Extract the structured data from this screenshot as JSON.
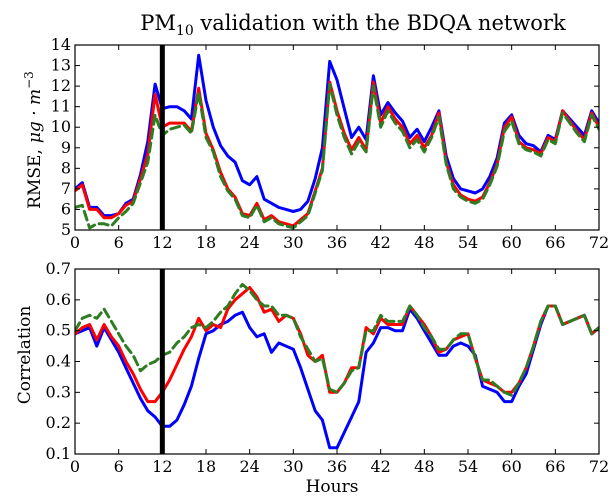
{
  "chart_data": [
    {
      "type": "line",
      "title_main": "PM",
      "title_sub": "10",
      "title_rest": " validation with the BDQA network",
      "xlabel": "",
      "ylabel_text": "RMSE,",
      "ylabel_unit": "μg · m",
      "ylabel_exp": "−3",
      "xlim": [
        0,
        72
      ],
      "ylim": [
        5,
        14
      ],
      "xticks": [
        0,
        6,
        12,
        18,
        24,
        30,
        36,
        42,
        48,
        54,
        60,
        66,
        72
      ],
      "yticks": [
        5,
        6,
        7,
        8,
        9,
        10,
        11,
        12,
        13,
        14
      ],
      "x": [
        0,
        1,
        2,
        3,
        4,
        5,
        6,
        7,
        8,
        9,
        10,
        11,
        12,
        13,
        14,
        15,
        16,
        17,
        18,
        19,
        20,
        21,
        22,
        23,
        24,
        25,
        26,
        27,
        28,
        29,
        30,
        31,
        32,
        33,
        34,
        35,
        36,
        37,
        38,
        39,
        40,
        41,
        42,
        43,
        44,
        45,
        46,
        47,
        48,
        49,
        50,
        51,
        52,
        53,
        54,
        55,
        56,
        57,
        58,
        59,
        60,
        61,
        62,
        63,
        64,
        65,
        66,
        67,
        68,
        69,
        70,
        71,
        72
      ],
      "series": [
        {
          "color": "#0000ff",
          "dash": "solid",
          "values": [
            7.0,
            7.3,
            6.1,
            6.1,
            5.7,
            5.7,
            5.8,
            6.3,
            6.5,
            7.7,
            9.3,
            12.1,
            10.9,
            11.0,
            11.0,
            10.8,
            10.4,
            13.5,
            11.3,
            10.0,
            9.1,
            8.6,
            8.3,
            7.4,
            7.2,
            7.6,
            6.5,
            6.3,
            6.1,
            6.0,
            5.9,
            6.0,
            6.4,
            7.5,
            9.0,
            13.2,
            12.3,
            10.9,
            9.5,
            10.0,
            9.4,
            12.5,
            10.6,
            11.2,
            10.7,
            10.3,
            9.5,
            9.9,
            9.3,
            10.0,
            10.8,
            8.6,
            7.5,
            7.0,
            6.9,
            6.8,
            7.0,
            7.6,
            8.5,
            10.2,
            10.6,
            9.6,
            9.2,
            9.1,
            8.8,
            9.6,
            9.4,
            10.8,
            10.4,
            10.0,
            9.6,
            10.8,
            10.2
          ]
        },
        {
          "color": "#ff0000",
          "dash": "solid",
          "values": [
            6.9,
            7.2,
            6.0,
            6.0,
            5.6,
            5.6,
            5.8,
            6.2,
            6.4,
            7.5,
            8.7,
            11.6,
            10.0,
            10.2,
            10.2,
            10.2,
            9.8,
            11.9,
            9.7,
            8.9,
            7.8,
            7.0,
            6.6,
            5.8,
            5.7,
            6.3,
            5.5,
            5.7,
            5.4,
            5.3,
            5.2,
            5.5,
            5.8,
            6.9,
            8.0,
            12.2,
            10.8,
            9.7,
            8.9,
            9.5,
            8.9,
            12.2,
            10.2,
            11.0,
            10.4,
            10.0,
            9.2,
            9.6,
            9.0,
            9.6,
            10.7,
            8.3,
            7.2,
            6.7,
            6.5,
            6.4,
            6.6,
            7.3,
            8.2,
            10.0,
            10.5,
            9.3,
            9.0,
            8.9,
            8.7,
            9.5,
            9.3,
            10.8,
            10.3,
            9.8,
            9.4,
            10.7,
            10.0
          ]
        },
        {
          "color": "#2e7d22",
          "dash": "dashed",
          "values": [
            6.1,
            6.2,
            5.1,
            5.3,
            5.3,
            5.2,
            5.6,
            5.9,
            6.3,
            7.3,
            8.3,
            10.6,
            9.6,
            9.9,
            10.0,
            10.1,
            9.7,
            11.7,
            9.5,
            8.8,
            7.6,
            6.9,
            6.5,
            5.7,
            5.6,
            6.2,
            5.4,
            5.6,
            5.3,
            5.2,
            5.1,
            5.4,
            5.7,
            6.8,
            7.9,
            12.1,
            10.6,
            9.5,
            8.7,
            9.3,
            8.8,
            12.0,
            10.0,
            10.8,
            10.2,
            9.8,
            9.0,
            9.4,
            8.8,
            9.5,
            10.5,
            8.2,
            7.0,
            6.6,
            6.4,
            6.3,
            6.5,
            7.2,
            8.1,
            9.8,
            10.3,
            9.2,
            8.9,
            8.8,
            8.6,
            9.4,
            9.2,
            10.7,
            10.2,
            9.7,
            9.3,
            10.6,
            9.9
          ]
        }
      ],
      "marker_x": 12
    },
    {
      "type": "line",
      "xlabel": "Hours",
      "ylabel": "Correlation",
      "xlim": [
        0,
        72
      ],
      "ylim": [
        0.1,
        0.7
      ],
      "xticks": [
        0,
        6,
        12,
        18,
        24,
        30,
        36,
        42,
        48,
        54,
        60,
        66,
        72
      ],
      "yticks": [
        0.1,
        0.2,
        0.3,
        0.4,
        0.5,
        0.6,
        0.7
      ],
      "x": [
        0,
        1,
        2,
        3,
        4,
        5,
        6,
        7,
        8,
        9,
        10,
        11,
        12,
        13,
        14,
        15,
        16,
        17,
        18,
        19,
        20,
        21,
        22,
        23,
        24,
        25,
        26,
        27,
        28,
        29,
        30,
        31,
        32,
        33,
        34,
        35,
        36,
        37,
        38,
        39,
        40,
        41,
        42,
        43,
        44,
        45,
        46,
        47,
        48,
        49,
        50,
        51,
        52,
        53,
        54,
        55,
        56,
        57,
        58,
        59,
        60,
        61,
        62,
        63,
        64,
        65,
        66,
        67,
        68,
        69,
        70,
        71,
        72
      ],
      "series": [
        {
          "color": "#0000ff",
          "dash": "solid",
          "values": [
            0.49,
            0.5,
            0.51,
            0.45,
            0.51,
            0.47,
            0.43,
            0.38,
            0.33,
            0.28,
            0.24,
            0.22,
            0.19,
            0.19,
            0.21,
            0.26,
            0.32,
            0.41,
            0.49,
            0.5,
            0.52,
            0.53,
            0.55,
            0.56,
            0.51,
            0.48,
            0.49,
            0.43,
            0.46,
            0.45,
            0.44,
            0.38,
            0.31,
            0.24,
            0.21,
            0.12,
            0.12,
            0.17,
            0.22,
            0.27,
            0.43,
            0.46,
            0.51,
            0.51,
            0.5,
            0.5,
            0.57,
            0.54,
            0.5,
            0.46,
            0.42,
            0.42,
            0.45,
            0.46,
            0.45,
            0.42,
            0.32,
            0.31,
            0.3,
            0.27,
            0.27,
            0.32,
            0.36,
            0.44,
            0.52,
            0.58,
            0.58,
            0.52,
            0.53,
            0.54,
            0.55,
            0.49,
            0.51
          ]
        },
        {
          "color": "#ff0000",
          "dash": "solid",
          "values": [
            0.49,
            0.51,
            0.52,
            0.47,
            0.52,
            0.48,
            0.45,
            0.4,
            0.36,
            0.31,
            0.27,
            0.27,
            0.3,
            0.34,
            0.39,
            0.44,
            0.48,
            0.54,
            0.5,
            0.52,
            0.51,
            0.57,
            0.6,
            0.62,
            0.64,
            0.61,
            0.56,
            0.57,
            0.53,
            0.55,
            0.54,
            0.49,
            0.42,
            0.4,
            0.42,
            0.3,
            0.3,
            0.33,
            0.38,
            0.38,
            0.51,
            0.49,
            0.54,
            0.52,
            0.52,
            0.52,
            0.58,
            0.55,
            0.52,
            0.48,
            0.43,
            0.44,
            0.47,
            0.48,
            0.49,
            0.41,
            0.34,
            0.33,
            0.32,
            0.3,
            0.3,
            0.33,
            0.38,
            0.45,
            0.53,
            0.58,
            0.58,
            0.52,
            0.53,
            0.54,
            0.55,
            0.49,
            0.51
          ]
        },
        {
          "color": "#2e7d22",
          "dash": "dashed",
          "values": [
            0.5,
            0.54,
            0.55,
            0.54,
            0.57,
            0.53,
            0.49,
            0.45,
            0.42,
            0.37,
            0.39,
            0.4,
            0.42,
            0.43,
            0.46,
            0.48,
            0.51,
            0.52,
            0.51,
            0.53,
            0.56,
            0.58,
            0.62,
            0.65,
            0.63,
            0.6,
            0.58,
            0.58,
            0.55,
            0.55,
            0.54,
            0.48,
            0.44,
            0.4,
            0.41,
            0.31,
            0.3,
            0.33,
            0.37,
            0.38,
            0.5,
            0.5,
            0.55,
            0.53,
            0.53,
            0.53,
            0.58,
            0.55,
            0.51,
            0.48,
            0.44,
            0.44,
            0.47,
            0.49,
            0.49,
            0.41,
            0.34,
            0.34,
            0.32,
            0.3,
            0.29,
            0.33,
            0.38,
            0.45,
            0.53,
            0.58,
            0.58,
            0.52,
            0.53,
            0.54,
            0.55,
            0.49,
            0.51
          ]
        }
      ],
      "marker_x": 12
    }
  ]
}
